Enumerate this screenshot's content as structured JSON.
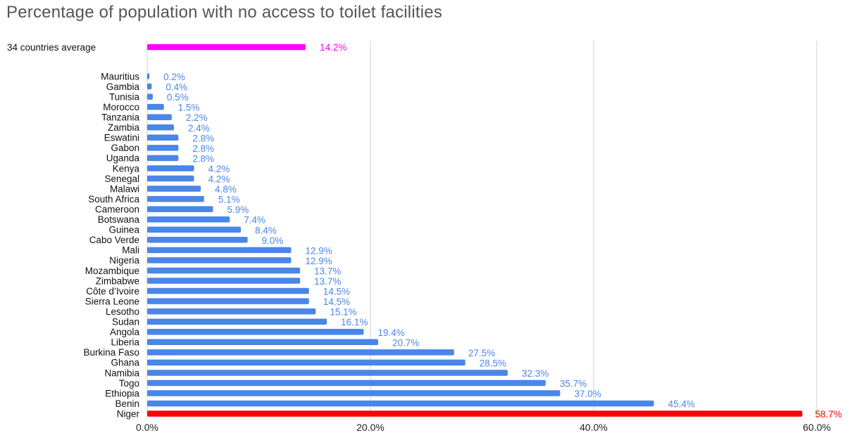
{
  "chart_data": {
    "type": "bar",
    "orientation": "horizontal",
    "title": "Percentage of population with no access to toilet facilities",
    "xlabel": "",
    "ylabel": "",
    "xlim": [
      0,
      60
    ],
    "xticks": [
      "0.0%",
      "20.0%",
      "40.0%",
      "60.0%"
    ],
    "grid": "vertical",
    "average": {
      "category": "34  countries average",
      "value": 14.2,
      "label": "14.2%",
      "color": "#ff00ff"
    },
    "default_color": "#4a86e8",
    "highlight_color": "#ff0000",
    "categories": [
      "Mauritius",
      "Gambia",
      "Tunisia",
      "Morocco",
      "Tanzania",
      "Zambia",
      "Eswatini",
      "Gabon",
      "Uganda",
      "Kenya",
      "Senegal",
      "Malawi",
      "South Africa",
      "Cameroon",
      "Botswana",
      "Guinea",
      "Cabo Verde",
      "Mali",
      "Nigeria",
      "Mozambique",
      "Zimbabwe",
      "Côte d’Ivoire",
      "Sierra Leone",
      "Lesotho",
      "Sudan",
      "Angola",
      "Liberia",
      "Burkina Faso",
      "Ghana",
      "Namibia",
      "Togo",
      "Ethiopia",
      "Benin",
      "Niger"
    ],
    "values": [
      0.2,
      0.4,
      0.5,
      1.5,
      2.2,
      2.4,
      2.8,
      2.8,
      2.8,
      4.2,
      4.2,
      4.8,
      5.1,
      5.9,
      7.4,
      8.4,
      9.0,
      12.9,
      12.9,
      13.7,
      13.7,
      14.5,
      14.5,
      15.1,
      16.1,
      19.4,
      20.7,
      27.5,
      28.5,
      32.3,
      35.7,
      37.0,
      45.4,
      58.7
    ],
    "value_labels": [
      "0.2%",
      "0.4%",
      "0.5%",
      "1.5%",
      "2.2%",
      "2.4%",
      "2.8%",
      "2.8%",
      "2.8%",
      "4.2%",
      "4.2%",
      "4.8%",
      "5.1%",
      "5.9%",
      "7.4%",
      "8.4%",
      "9.0%",
      "12.9%",
      "12.9%",
      "13.7%",
      "13.7%",
      "14.5%",
      "14.5%",
      "15.1%",
      "16.1%",
      "19.4%",
      "20.7%",
      "27.5%",
      "28.5%",
      "32.3%",
      "35.7%",
      "37.0%",
      "45.4%",
      "58.7%"
    ],
    "highlight": [
      "Niger"
    ]
  }
}
